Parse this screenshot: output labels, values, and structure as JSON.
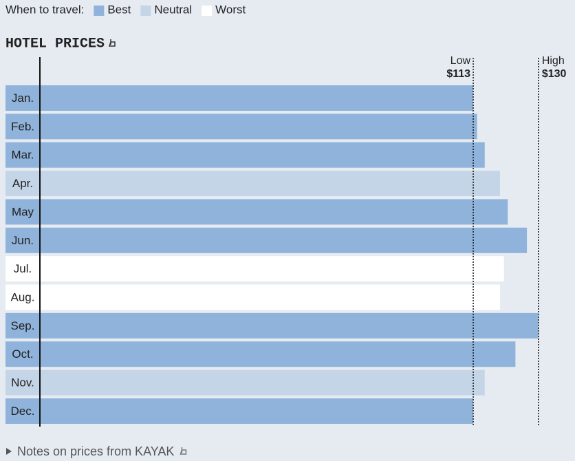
{
  "legend_title": "When to travel:",
  "footer": "Notes on prices from KAYAK",
  "chart_data": {
    "type": "bar",
    "orientation": "horizontal",
    "title": "HOTEL PRICES",
    "categories": [
      "Jan.",
      "Feb.",
      "Mar.",
      "Apr.",
      "May",
      "Jun.",
      "Jul.",
      "Aug.",
      "Sep.",
      "Oct.",
      "Nov.",
      "Dec."
    ],
    "values": [
      113,
      114,
      116,
      120,
      122,
      127,
      121,
      120,
      130,
      124,
      116,
      113
    ],
    "colors": [
      "#8fb3da",
      "#8fb3da",
      "#8fb3da",
      "#c5d5e8",
      "#8fb3da",
      "#8fb3da",
      "#ffffff",
      "#ffffff",
      "#8fb3da",
      "#8fb3da",
      "#c5d5e8",
      "#8fb3da"
    ],
    "legend": [
      {
        "name": "Best",
        "color": "#8fb3da"
      },
      {
        "name": "Neutral",
        "color": "#c5d5e8"
      },
      {
        "name": "Worst",
        "color": "#ffffff"
      }
    ],
    "xlim": [
      0,
      139
    ],
    "reference_lines": [
      {
        "label": "Low",
        "value": 113,
        "value_label": "$113"
      },
      {
        "label": "High",
        "value": 130,
        "value_label": "$130"
      }
    ]
  }
}
